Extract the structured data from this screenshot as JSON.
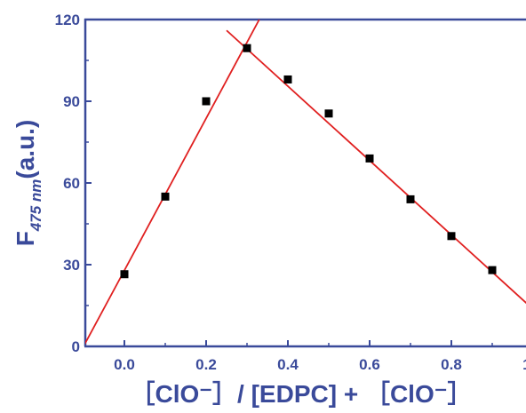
{
  "chart_data": {
    "type": "scatter",
    "title": "",
    "xlabel": "［ClO⁻］/ [EDPC] + ［ClO⁻］",
    "ylabel": {
      "main": "F",
      "subscript": "475 nm",
      "suffix": "(a.u.)"
    },
    "xlim": [
      -0.1,
      1.1
    ],
    "ylim": [
      0,
      120
    ],
    "xticks": [
      0.0,
      0.2,
      0.4,
      0.6,
      0.8,
      1.0
    ],
    "xtick_labels": [
      "0.0",
      "0.2",
      "0.4",
      "0.6",
      "0.8",
      "1.0"
    ],
    "yticks": [
      0,
      30,
      60,
      90,
      120
    ],
    "ytick_labels": [
      "0",
      "30",
      "60",
      "90",
      "120"
    ],
    "grid": false,
    "legend": "none",
    "series": [
      {
        "x": [
          0.0,
          0.1,
          0.2,
          0.3,
          0.4,
          0.5,
          0.6,
          0.7,
          0.8,
          0.9,
          1.0
        ],
        "y": [
          26.5,
          55,
          90,
          109.5,
          98,
          85.5,
          69,
          54,
          40.5,
          28,
          19
        ]
      }
    ],
    "fit_lines": [
      {
        "x": [
          -0.1,
          0.33
        ],
        "y": [
          0,
          120
        ]
      },
      {
        "x": [
          0.25,
          1.1
        ],
        "y": [
          116,
          0
        ]
      }
    ],
    "colors": {
      "axis": "#3a4a9a",
      "text": "#3a4a9a",
      "marker": "#000000",
      "fit_line": "#e02020"
    }
  }
}
